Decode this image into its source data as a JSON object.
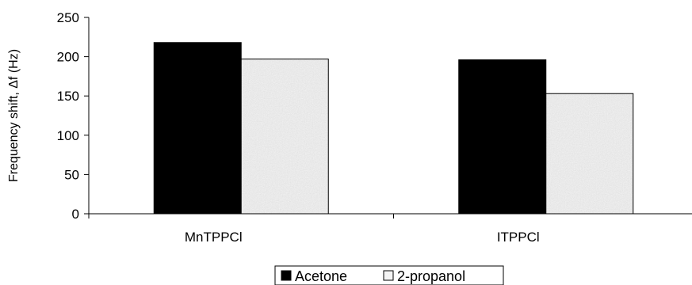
{
  "chart_data": {
    "type": "bar",
    "title": "",
    "xlabel": "",
    "ylabel": "Frequency shift, Δf (Hz)",
    "categories": [
      "MnTPPCl",
      "ITPPCl"
    ],
    "series": [
      {
        "name": "Acetone",
        "values": [
          218,
          196
        ],
        "color": "#000000",
        "pattern": "solid"
      },
      {
        "name": "2-propanol",
        "values": [
          197,
          153
        ],
        "color": "#e9e9e9",
        "pattern": "speckled-light-gray"
      }
    ],
    "ylim": [
      0,
      250
    ],
    "yticks": [
      0,
      50,
      100,
      150,
      200,
      250
    ],
    "grid": false,
    "legend_position": "bottom"
  }
}
